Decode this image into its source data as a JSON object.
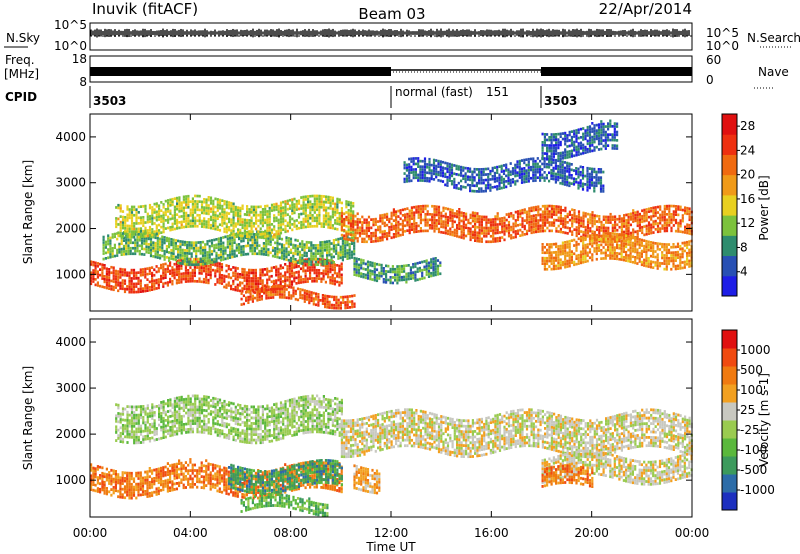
{
  "header": {
    "station": "Inuvik (fitACF)",
    "beam": "Beam 03",
    "date": "22/Apr/2014"
  },
  "panels": {
    "nsky_label": "N.Sky",
    "nsearch_label": "N.Search",
    "nsky_ticks": [
      "10^5",
      "10^0"
    ],
    "nsearch_ticks": [
      "10^5",
      "10^0"
    ],
    "freq_label": "Freq.",
    "freq_unit": "[MHz]",
    "freq_ticks": [
      "18",
      "8"
    ],
    "nave_label": "Nave",
    "nave_ticks": [
      "60",
      "0"
    ],
    "cpid_label": "CPID",
    "cpid_segments": [
      "3503",
      "normal (fast)",
      "151",
      "3503"
    ]
  },
  "chart_data": [
    {
      "type": "heatmap",
      "name": "power",
      "ylabel": "Slant Range [km]",
      "ylim": [
        200,
        4500
      ],
      "yticks": [
        1000,
        2000,
        3000,
        4000
      ],
      "colorbar": {
        "label": "Power [dB]",
        "ticks": [
          4,
          8,
          12,
          16,
          20,
          24,
          28
        ],
        "range": [
          0,
          30
        ],
        "colors": [
          "#1e1ee6",
          "#2850b4",
          "#2e8c6e",
          "#7cc23c",
          "#e8d020",
          "#f09a18",
          "#f06a10",
          "#ee3010",
          "#e01010"
        ]
      },
      "bands": [
        {
          "t0": 0.0,
          "t1": 10.0,
          "r0": 700,
          "r1": 1200,
          "level": 27
        },
        {
          "t0": 0.5,
          "t1": 10.5,
          "r0": 1300,
          "r1": 1800,
          "level": 12
        },
        {
          "t0": 1.0,
          "t1": 10.5,
          "r0": 1900,
          "r1": 2600,
          "level": 15
        },
        {
          "t0": 6.0,
          "t1": 10.5,
          "r0": 350,
          "r1": 600,
          "level": 26
        },
        {
          "t0": 10.0,
          "t1": 24.0,
          "r0": 1800,
          "r1": 2400,
          "level": 25
        },
        {
          "t0": 10.5,
          "t1": 14.0,
          "r0": 900,
          "r1": 1300,
          "level": 10
        },
        {
          "t0": 18.0,
          "t1": 24.0,
          "r0": 1200,
          "r1": 1800,
          "level": 22
        },
        {
          "t0": 12.5,
          "t1": 20.5,
          "r0": 2900,
          "r1": 3400,
          "level": 6
        },
        {
          "t0": 18.0,
          "t1": 21.0,
          "r0": 3600,
          "r1": 4200,
          "level": 6
        }
      ]
    },
    {
      "type": "heatmap",
      "name": "velocity",
      "ylabel": "Slant Range [km]",
      "ylim": [
        200,
        4500
      ],
      "yticks": [
        1000,
        2000,
        3000,
        4000
      ],
      "colorbar": {
        "label": "Velocity [m s-1]",
        "ticks": [
          "1000",
          "500",
          "100",
          "25",
          "-25",
          "-100",
          "-500",
          "-1000"
        ],
        "colors": [
          "#1c2fbf",
          "#2c6ca8",
          "#3c9a5c",
          "#5ab83c",
          "#9acb50",
          "#c8c8c0",
          "#f2a020",
          "#f07a10",
          "#f04a10",
          "#e01010"
        ]
      },
      "bands": [
        {
          "t0": 0.0,
          "t1": 10.0,
          "r0": 700,
          "r1": 1300,
          "level": 7
        },
        {
          "t0": 5.5,
          "t1": 10.0,
          "r0": 800,
          "r1": 1300,
          "level": 2
        },
        {
          "t0": 6.0,
          "t1": 9.5,
          "r0": 300,
          "r1": 600,
          "level": 3
        },
        {
          "t0": 1.0,
          "t1": 10.0,
          "r0": 1900,
          "r1": 2700,
          "level": 4
        },
        {
          "t0": 10.0,
          "t1": 24.0,
          "r0": 1600,
          "r1": 2400,
          "level": 5
        },
        {
          "t0": 18.0,
          "t1": 24.0,
          "r0": 1000,
          "r1": 1500,
          "level": 5
        },
        {
          "t0": 18.0,
          "t1": 20.0,
          "r0": 800,
          "r1": 1200,
          "level": 7
        },
        {
          "t0": 10.5,
          "t1": 11.5,
          "r0": 800,
          "r1": 1300,
          "level": 6
        }
      ]
    }
  ],
  "xaxis": {
    "label": "Time UT",
    "ticks": [
      "00:00",
      "04:00",
      "08:00",
      "12:00",
      "16:00",
      "20:00",
      "00:00"
    ]
  }
}
